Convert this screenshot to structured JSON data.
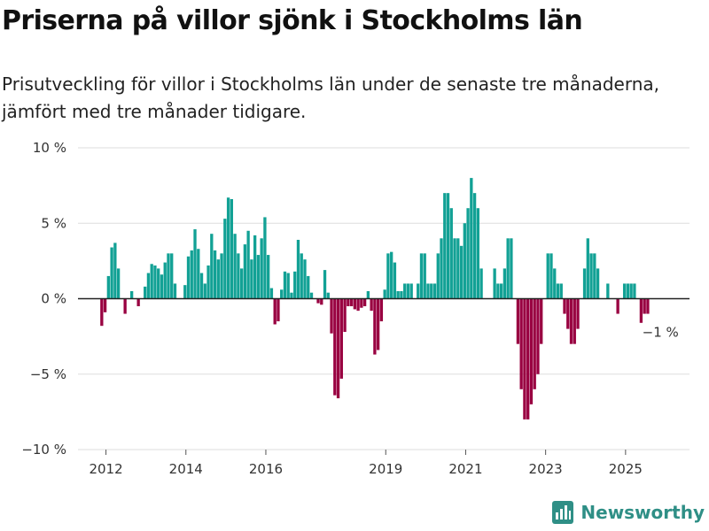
{
  "title": "Priserna på villor sjönk i Stockholms län",
  "subtitle": "Prisutveckling för villor i Stockholms län under de senaste tre månaderna, jämfört med tre månader tidigare.",
  "brand": "Newsworthy",
  "colors": {
    "positive": "#12a195",
    "negative": "#990041",
    "grid": "#dddddd",
    "brand": "#2f8f86"
  },
  "chart_data": {
    "type": "bar",
    "title": "Priserna på villor sjönk i Stockholms län",
    "xlabel": "",
    "ylabel": "",
    "ylim": [
      -10,
      10
    ],
    "yticks": [
      10,
      5,
      0,
      -5,
      -10
    ],
    "ytick_labels": [
      "10 %",
      "5 %",
      "0 %",
      "−5 %",
      "−10 %"
    ],
    "x_start": 2011.9,
    "x_step": 0.0833,
    "xlim": [
      2011.3,
      2026.6
    ],
    "xticks": [
      2012,
      2014,
      2016,
      2019,
      2021,
      2023,
      2025
    ],
    "xtick_labels": [
      "2012",
      "2014",
      "2016",
      "2019",
      "2021",
      "2023",
      "2025"
    ],
    "annotation": {
      "label": "−1 %",
      "x": 2025.75,
      "y": -1.0
    },
    "values": [
      -1.8,
      -0.9,
      1.5,
      3.4,
      3.7,
      2.0,
      0.0,
      -1.0,
      0.0,
      0.5,
      0.0,
      -0.5,
      0.0,
      0.8,
      1.7,
      2.3,
      2.2,
      2.0,
      1.6,
      2.4,
      3.0,
      3.0,
      1.0,
      0.0,
      0.0,
      0.9,
      2.8,
      3.2,
      4.6,
      3.3,
      1.7,
      1.0,
      2.2,
      4.3,
      3.2,
      2.6,
      3.0,
      5.3,
      6.7,
      6.6,
      4.3,
      3.0,
      2.0,
      3.6,
      4.5,
      2.6,
      4.2,
      2.9,
      4.0,
      5.4,
      2.9,
      0.7,
      -1.7,
      -1.5,
      0.6,
      1.8,
      1.7,
      0.4,
      1.8,
      3.9,
      3.0,
      2.6,
      1.5,
      0.4,
      0.0,
      -0.3,
      -0.4,
      1.9,
      0.4,
      -2.3,
      -6.4,
      -6.6,
      -5.3,
      -2.2,
      -0.5,
      -0.5,
      -0.7,
      -0.8,
      -0.6,
      -0.5,
      0.5,
      -0.8,
      -3.7,
      -3.4,
      -1.5,
      0.6,
      3.0,
      3.1,
      2.4,
      0.5,
      0.5,
      1.0,
      1.0,
      1.0,
      0.0,
      1.0,
      3.0,
      3.0,
      1.0,
      1.0,
      1.0,
      3.0,
      4.0,
      7.0,
      7.0,
      6.0,
      4.0,
      4.0,
      3.5,
      5.0,
      6.0,
      8.0,
      7.0,
      6.0,
      2.0,
      0.0,
      0.0,
      0.0,
      2.0,
      1.0,
      1.0,
      2.0,
      4.0,
      4.0,
      0.0,
      -3.0,
      -6.0,
      -8.0,
      -8.0,
      -7.0,
      -6.0,
      -5.0,
      -3.0,
      0.0,
      3.0,
      3.0,
      2.0,
      1.0,
      1.0,
      -1.0,
      -2.0,
      -3.0,
      -3.0,
      -2.0,
      0.0,
      2.0,
      4.0,
      3.0,
      3.0,
      2.0,
      0.0,
      0.0,
      1.0,
      0.0,
      0.0,
      -1.0,
      0.0,
      1.0,
      1.0,
      1.0,
      1.0,
      0.0,
      -1.6,
      -1.0,
      -1.0
    ]
  }
}
